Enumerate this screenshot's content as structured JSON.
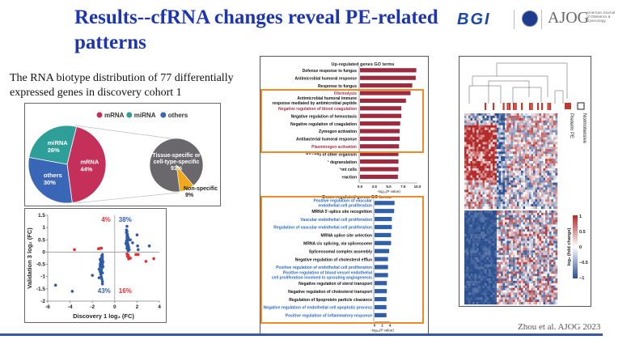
{
  "slide": {
    "title": "Results--cfRNA changes reveal PE-related patterns",
    "subtitle": "The RNA biotype distribution of 77 differentially expressed genes in discovery cohort 1",
    "citation": "Zhou et al. AJOG 2023",
    "logos": {
      "bgi": "BGI",
      "ajog": "AJOG",
      "ajog_sub": "American Journal of Obstetrics & Gynecology"
    },
    "colors": {
      "title": "#1c35b0",
      "bottom_rule": "#3a57a6"
    }
  },
  "chart_data": [
    {
      "type": "pie",
      "legend": [
        "mRNA",
        "miRNA",
        "others"
      ],
      "legend_placement": "top",
      "slices": [
        {
          "label": "mRNA",
          "value": 44,
          "text": "44%",
          "color": "#c4305a"
        },
        {
          "label": "others",
          "value": 30,
          "text": "30%",
          "color": "#3a66b8"
        },
        {
          "label": "miRNA",
          "value": 26,
          "text": "26%",
          "color": "#2e9e98"
        }
      ],
      "breakout": {
        "slices": [
          {
            "label": "Tissue-specific or cell-type-specific",
            "value": 91,
            "text": "91%",
            "color": "#6a686c"
          },
          {
            "label": "Non-specific",
            "value": 9,
            "text": "9%",
            "color": "#f2a81d"
          }
        ]
      }
    },
    {
      "type": "scatter",
      "xlabel": "Discovery 1 log₂ (FC)",
      "ylabel": "Validation 3 log₂ (FC)",
      "xlim": [
        -6,
        4
      ],
      "ylim": [
        -2,
        1.5
      ],
      "xticks": [
        "-6",
        "-4",
        "-2",
        "0",
        "2",
        "4"
      ],
      "yticks": [
        "1.5",
        "1",
        "0.5",
        "0",
        "-0.5",
        "-1",
        "-1.5",
        "-2"
      ],
      "quadrant_labels": [
        {
          "text": "4%",
          "quadrant": "top-left",
          "color": "#e03030"
        },
        {
          "text": "38%",
          "quadrant": "top-right",
          "color": "#3561ad"
        },
        {
          "text": "43%",
          "quadrant": "bottom-left",
          "color": "#3561ad"
        },
        {
          "text": "16%",
          "quadrant": "bottom-right",
          "color": "#e03030"
        }
      ],
      "series": [
        {
          "color": "#2f5aa8",
          "points": [
            [
              1.1,
              1.05
            ],
            [
              1.05,
              0.9
            ],
            [
              1.1,
              0.85
            ],
            [
              1.05,
              0.8
            ],
            [
              1.1,
              0.75
            ],
            [
              1.15,
              0.7
            ],
            [
              1.1,
              0.65
            ],
            [
              1.2,
              0.6
            ],
            [
              1.1,
              0.55
            ],
            [
              1.3,
              0.5
            ],
            [
              1.05,
              0.45
            ],
            [
              1.15,
              0.4
            ],
            [
              1.0,
              0.35
            ],
            [
              1.2,
              0.3
            ],
            [
              1.1,
              0.25
            ],
            [
              1.25,
              0.2
            ],
            [
              1.1,
              0.15
            ],
            [
              1.3,
              0.1
            ],
            [
              1.2,
              0.05
            ],
            [
              1.4,
              0.5
            ],
            [
              1.6,
              0.38
            ],
            [
              2.0,
              0.7
            ],
            [
              2.05,
              0.25
            ],
            [
              2.1,
              0.1
            ],
            [
              3.1,
              0.25
            ],
            [
              -1.1,
              -0.1
            ],
            [
              -1.15,
              -0.15
            ],
            [
              -1.1,
              -0.2
            ],
            [
              -1.2,
              -0.25
            ],
            [
              -1.3,
              -0.3
            ],
            [
              -1.1,
              -0.3
            ],
            [
              -1.2,
              -0.35
            ],
            [
              -1.05,
              -0.4
            ],
            [
              -1.25,
              -0.4
            ],
            [
              -1.15,
              -0.45
            ],
            [
              -1.3,
              -0.5
            ],
            [
              -1.1,
              -0.5
            ],
            [
              -1.2,
              -0.55
            ],
            [
              -1.05,
              -0.6
            ],
            [
              -1.3,
              -0.6
            ],
            [
              -1.15,
              -0.65
            ],
            [
              -1.4,
              -0.7
            ],
            [
              -1.2,
              -0.75
            ],
            [
              -1.3,
              -0.8
            ],
            [
              -1.1,
              -0.85
            ],
            [
              -1.25,
              -0.9
            ],
            [
              -1.2,
              -1.0
            ],
            [
              -1.15,
              -1.1
            ],
            [
              -1.1,
              -1.2
            ],
            [
              -1.1,
              -1.3
            ],
            [
              -1.4,
              -1.05
            ],
            [
              -2.0,
              -0.95
            ],
            [
              -5.3,
              -1.35
            ],
            [
              -3.8,
              -1.6
            ]
          ]
        },
        {
          "color": "#e03030",
          "points": [
            [
              -3.6,
              0.1
            ],
            [
              -1.45,
              0.14
            ],
            [
              -1.3,
              0.15
            ],
            [
              -1.2,
              0.16
            ],
            [
              1.1,
              -0.08
            ],
            [
              1.2,
              -0.12
            ],
            [
              1.15,
              -0.18
            ],
            [
              1.3,
              -0.22
            ],
            [
              1.25,
              -0.28
            ],
            [
              1.4,
              -0.25
            ],
            [
              1.9,
              -0.1
            ],
            [
              2.1,
              -0.1
            ],
            [
              2.8,
              -0.38
            ],
            [
              3.5,
              -0.27
            ]
          ]
        }
      ]
    },
    {
      "type": "bar",
      "orientation": "horizontal",
      "title": "Up-regulated genes GO terms",
      "xlabel": "-log₁₀(P value)",
      "xlim": [
        0,
        10
      ],
      "xticks": [
        "0.0",
        "2.5",
        "5.0",
        "7.5",
        "10.0"
      ],
      "bar_color": "#9e2a3f",
      "highlight_box_color": "#f08a24",
      "categories": [
        {
          "label": "Defense response to fungus",
          "value": 9.8,
          "color": "#111"
        },
        {
          "label": "Antimicrobial humoral response",
          "value": 9.7,
          "color": "#111"
        },
        {
          "label": "Response to fungus",
          "value": 9.1,
          "color": "#111"
        },
        {
          "label": "Fibrinolysis",
          "value": 8.8,
          "color": "#a63247"
        },
        {
          "label": "Antimicrobial humoral immune response mediated by antimicrobial peptide",
          "value": 8.0,
          "color": "#111"
        },
        {
          "label": "Negative regulation of blood coagulation",
          "value": 7.2,
          "color": "#a63247"
        },
        {
          "label": "Negative regulation of hemostasis",
          "value": 7.2,
          "color": "#111"
        },
        {
          "label": "Negative regulation of coagulation",
          "value": 7.0,
          "color": "#111"
        },
        {
          "label": "Zymogen activation",
          "value": 6.9,
          "color": "#111"
        },
        {
          "label": "Antibacterial humoral response",
          "value": 6.9,
          "color": "#111"
        },
        {
          "label": "Plasminogen activation",
          "value": 6.8,
          "color": "#a63247"
        },
        {
          "label": "Kil      cells of other organism",
          "value": 6.7,
          "color": "#111"
        },
        {
          "label": "       let degranulation",
          "value": 6.7,
          "color": "#111"
        },
        {
          "label": "Kil        biont cells",
          "value": 6.7,
          "color": "#111"
        },
        {
          "label": "Kil       rganism / inv     eraction",
          "value": 6.6,
          "color": "#111"
        }
      ]
    },
    {
      "type": "bar",
      "orientation": "horizontal",
      "title": "Down-regulated genes GO terms",
      "xlabel": "-log₁₀(P value)",
      "xlim": [
        0,
        4
      ],
      "xticks": [
        "0",
        "2",
        "4"
      ],
      "bar_color": "#2e5fa8",
      "highlight_box_color": "#f08a24",
      "categories": [
        {
          "label": "Positive regulation of vascular endothelial cell proliferation",
          "value": 5.2,
          "color": "#2f6bbf"
        },
        {
          "label": "MRNA 5'-splice site recognition",
          "value": 5.1,
          "color": "#111"
        },
        {
          "label": "Vascular endothelial cell proliferation",
          "value": 4.5,
          "color": "#2f6bbf"
        },
        {
          "label": "Regulation of vascular endothelial cell proliferation",
          "value": 4.5,
          "color": "#2f6bbf"
        },
        {
          "label": "MRNA splice site selection",
          "value": 4.3,
          "color": "#111"
        },
        {
          "label": "MRNA cis splicing, via spliceosome",
          "value": 4.3,
          "color": "#111"
        },
        {
          "label": "Spliceosomal complex assembly",
          "value": 3.8,
          "color": "#111"
        },
        {
          "label": "Negative regulation of cholesterol efflux",
          "value": 3.5,
          "color": "#111"
        },
        {
          "label": "Positive regulation of endothelial cell proliferation",
          "value": 3.5,
          "color": "#2f6bbf"
        },
        {
          "label": "Positive regulation of blood vessel endothelial cell proliferation involved in sprouting angiogenesis",
          "value": 3.5,
          "color": "#2f6bbf"
        },
        {
          "label": "Negative regulation of sterol transport",
          "value": 3.2,
          "color": "#111"
        },
        {
          "label": "Negative regulation of cholesterol transport",
          "value": 3.2,
          "color": "#111"
        },
        {
          "label": "Regulation of lipoprotein particle clearance",
          "value": 3.1,
          "color": "#111"
        },
        {
          "label": "Negative regulation of endothelial cell apoptotic process",
          "value": 3.1,
          "color": "#2f6bbf"
        },
        {
          "label": "Positive regulation of inflammatory response",
          "value": 3.1,
          "color": "#2f6bbf"
        }
      ]
    },
    {
      "type": "heatmap",
      "legend": [
        {
          "label": "Preterm PE",
          "color": "#c0392b"
        },
        {
          "label": "Normotensive",
          "color": "#ffffff"
        }
      ],
      "colorbar": {
        "label": "log₂ (fold change)",
        "ticks": [
          "1",
          "0.5",
          "0",
          "−0.5",
          "−1"
        ],
        "range": [
          -1,
          1
        ],
        "low_color": "#2b4f8f",
        "mid_color": "#ffffff",
        "high_color": "#b22a2a"
      },
      "dendrogram": true
    }
  ]
}
